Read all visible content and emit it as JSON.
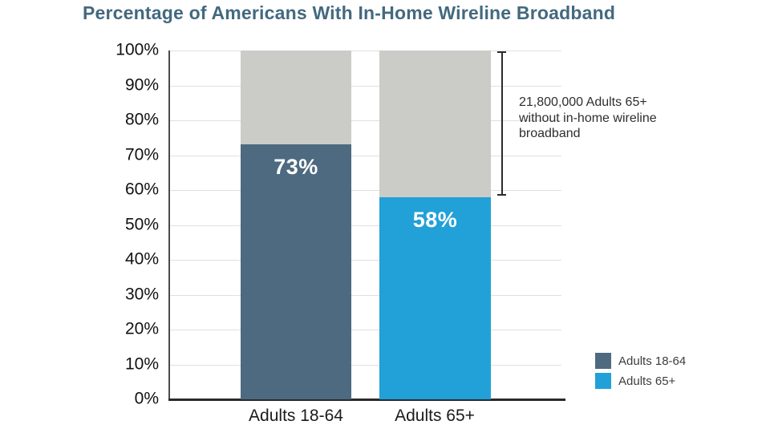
{
  "chart_data": {
    "type": "bar",
    "title": "Percentage of Americans With In-Home Wireline Broadband",
    "categories": [
      "Adults 18-64",
      "Adults 65+"
    ],
    "series": [
      {
        "name": "Adults 18-64",
        "value": 73,
        "label": "73%",
        "color": "#4d6a80"
      },
      {
        "name": "Adults 65+",
        "value": 58,
        "label": "58%",
        "color": "#22a0d8"
      }
    ],
    "stack_total": 100,
    "remainder_color": "#cbccc7",
    "title_color": "#43697f",
    "ylabel": "",
    "xlabel": "",
    "ylim": [
      0,
      100
    ],
    "ytick_step": 10,
    "ytick_labels": [
      "0%",
      "10%",
      "20%",
      "30%",
      "40%",
      "50%",
      "60%",
      "70%",
      "80%",
      "90%",
      "100%"
    ],
    "grid": true,
    "legend_position": "bottom-right",
    "annotation": {
      "text": "21,800,000 Adults 65+ without in-home wireline broadband",
      "from_percent": 100,
      "to_percent": 58
    }
  }
}
